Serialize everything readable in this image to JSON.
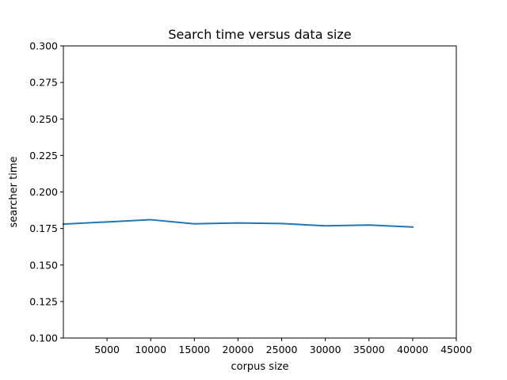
{
  "chart_data": {
    "type": "line",
    "title": "Search time versus data size",
    "xlabel": "corpus size",
    "ylabel": "searcher time",
    "xlim": [
      0,
      45000
    ],
    "ylim": [
      0.1,
      0.3
    ],
    "xticks": [
      5000,
      10000,
      15000,
      20000,
      25000,
      30000,
      35000,
      40000,
      45000
    ],
    "xtick_labels": [
      "5000",
      "10000",
      "15000",
      "20000",
      "25000",
      "30000",
      "35000",
      "40000",
      "45000"
    ],
    "yticks": [
      0.1,
      0.125,
      0.15,
      0.175,
      0.2,
      0.225,
      0.25,
      0.275,
      0.3
    ],
    "ytick_labels": [
      "0.100",
      "0.125",
      "0.150",
      "0.175",
      "0.200",
      "0.225",
      "0.250",
      "0.275",
      "0.300"
    ],
    "grid": false,
    "series": [
      {
        "color": "#1f77b4",
        "x": [
          0,
          5000,
          10000,
          15000,
          20000,
          25000,
          30000,
          35000,
          40000
        ],
        "y": [
          0.178,
          0.1795,
          0.181,
          0.1782,
          0.1788,
          0.1784,
          0.1768,
          0.1774,
          0.176
        ]
      }
    ]
  }
}
